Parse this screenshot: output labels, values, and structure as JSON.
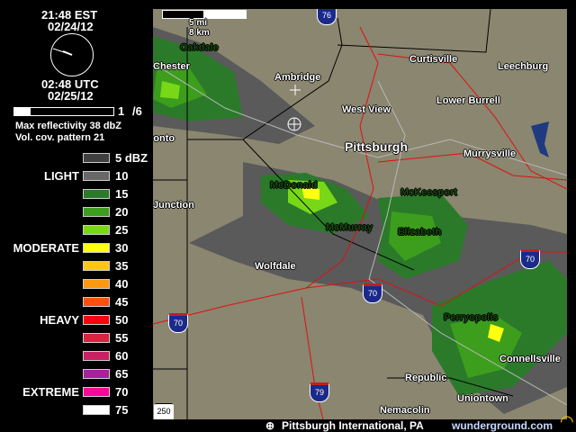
{
  "time": {
    "local": "21:48 EST",
    "local_date": "02/24/12",
    "utc": "02:48 UTC",
    "utc_date": "02/25/12"
  },
  "animation": {
    "frame": "1",
    "total": "/6",
    "progress_fraction": 0.167
  },
  "info": {
    "max_reflectivity": "Max reflectivity 38 dbZ",
    "vcp": "Vol. cov. pattern 21"
  },
  "legend": {
    "unit": "dBZ",
    "rows": [
      {
        "value": "5 dBZ",
        "color": "#404040",
        "category": ""
      },
      {
        "value": "10",
        "color": "#686868",
        "category": "LIGHT"
      },
      {
        "value": "15",
        "color": "#2a7a2a",
        "category": ""
      },
      {
        "value": "20",
        "color": "#3c9e1c",
        "category": ""
      },
      {
        "value": "25",
        "color": "#78d818",
        "category": ""
      },
      {
        "value": "30",
        "color": "#ffff10",
        "category": "MODERATE"
      },
      {
        "value": "35",
        "color": "#fcc810",
        "category": ""
      },
      {
        "value": "40",
        "color": "#fc9810",
        "category": ""
      },
      {
        "value": "45",
        "color": "#fc5010",
        "category": ""
      },
      {
        "value": "50",
        "color": "#fc0010",
        "category": "HEAVY"
      },
      {
        "value": "55",
        "color": "#dc2040",
        "category": ""
      },
      {
        "value": "60",
        "color": "#c82060",
        "category": ""
      },
      {
        "value": "65",
        "color": "#a820a0",
        "category": ""
      },
      {
        "value": "70",
        "color": "#fc0898",
        "category": "EXTREME"
      },
      {
        "value": "75",
        "color": "#ffffff",
        "category": ""
      }
    ]
  },
  "map": {
    "scale_mi": "5 mi",
    "scale_km": "8 km",
    "cities": [
      "Chester",
      "Curtisville",
      "Leechburg",
      "Ambridge",
      "Lower Burrell",
      "West View",
      "Pittsburgh",
      "Murrysville",
      "McDonald",
      "McKeesport",
      "Elizabeth",
      "McMurray",
      "Wolfdale",
      "Perryopolis",
      "Connellsville",
      "Republic",
      "Uniontown",
      "Nemacolin",
      "Junction",
      "ronto",
      "Oakdale"
    ],
    "highways": [
      "76",
      "70",
      "70",
      "70",
      "79",
      "250"
    ]
  },
  "footer": {
    "station": "Pittsburgh International, PA",
    "brand": "wunderground.com"
  },
  "colors": {
    "map_background": "#8a8670",
    "roads": "#e01010",
    "borders": "#000000"
  }
}
